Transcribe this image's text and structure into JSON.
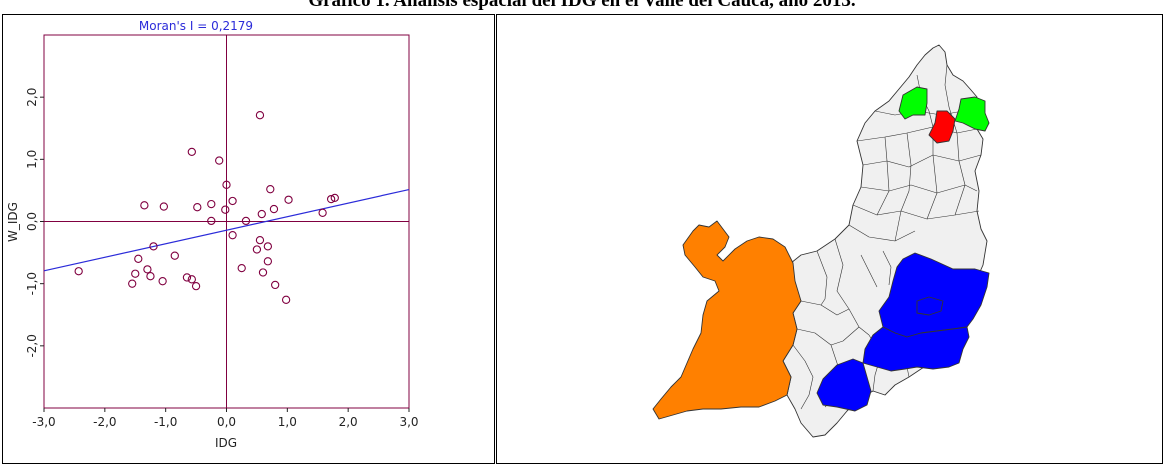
{
  "title": "Gráfico 1. Análisis espacial del IDG en el Valle del Cauca, año 2013.",
  "colors": {
    "frame": "#800040",
    "regression": "#2b2bd9",
    "points": "#800040",
    "moran_text": "#2b2bd9",
    "map_base": "#f0f0f0",
    "map_green": "#00ff00",
    "map_red": "#ff0000",
    "map_blue": "#0000ff",
    "map_orange": "#ff8000",
    "map_border": "#333333"
  },
  "chart_data": {
    "type": "scatter",
    "title": "Moran's I = 0,2179",
    "xlabel": "IDG",
    "ylabel": "W_IDG",
    "xlim": [
      -3.0,
      3.0
    ],
    "ylim": [
      -3.0,
      3.0
    ],
    "x_ticks": [
      -3.0,
      -2.0,
      -1.0,
      0.0,
      1.0,
      2.0,
      3.0
    ],
    "x_tick_labels": [
      "-3,0",
      "-2,0",
      "-1,0",
      "0,0",
      "1,0",
      "2,0",
      "3,0"
    ],
    "y_ticks": [
      -2.0,
      -1.0,
      0.0,
      1.0,
      2.0
    ],
    "y_tick_labels": [
      "-2,0",
      "-1,0",
      "0,0",
      "1,0",
      "2,0"
    ],
    "regression": {
      "slope": 0.2179,
      "intercept": -0.14
    },
    "points": [
      {
        "x": -2.43,
        "y": -0.8
      },
      {
        "x": -1.55,
        "y": -1.0
      },
      {
        "x": -1.5,
        "y": -0.84
      },
      {
        "x": -1.45,
        "y": -0.6
      },
      {
        "x": -1.3,
        "y": -0.77
      },
      {
        "x": -1.25,
        "y": -0.88
      },
      {
        "x": -1.2,
        "y": -0.4
      },
      {
        "x": -1.05,
        "y": -0.96
      },
      {
        "x": -0.85,
        "y": -0.55
      },
      {
        "x": -1.35,
        "y": 0.26
      },
      {
        "x": -1.03,
        "y": 0.24
      },
      {
        "x": -0.65,
        "y": -0.9
      },
      {
        "x": -0.57,
        "y": -0.93
      },
      {
        "x": -0.5,
        "y": -1.04
      },
      {
        "x": -0.57,
        "y": 1.12
      },
      {
        "x": -0.48,
        "y": 0.23
      },
      {
        "x": -0.25,
        "y": 0.28
      },
      {
        "x": -0.25,
        "y": 0.01
      },
      {
        "x": -0.12,
        "y": 0.98
      },
      {
        "x": 0.0,
        "y": 0.59
      },
      {
        "x": 0.1,
        "y": 0.33
      },
      {
        "x": -0.02,
        "y": 0.19
      },
      {
        "x": 0.1,
        "y": -0.22
      },
      {
        "x": 0.25,
        "y": -0.75
      },
      {
        "x": 0.32,
        "y": 0.01
      },
      {
        "x": 0.5,
        "y": -0.45
      },
      {
        "x": 0.55,
        "y": -0.3
      },
      {
        "x": 0.58,
        "y": 0.12
      },
      {
        "x": 0.6,
        "y": -0.82
      },
      {
        "x": 0.55,
        "y": 1.71
      },
      {
        "x": 0.68,
        "y": -0.64
      },
      {
        "x": 0.68,
        "y": -0.4
      },
      {
        "x": 0.72,
        "y": 0.52
      },
      {
        "x": 0.78,
        "y": 0.2
      },
      {
        "x": 0.8,
        "y": -1.02
      },
      {
        "x": 0.98,
        "y": -1.26
      },
      {
        "x": 1.02,
        "y": 0.35
      },
      {
        "x": 1.58,
        "y": 0.14
      },
      {
        "x": 1.72,
        "y": 0.36
      },
      {
        "x": 1.78,
        "y": 0.38
      }
    ]
  }
}
